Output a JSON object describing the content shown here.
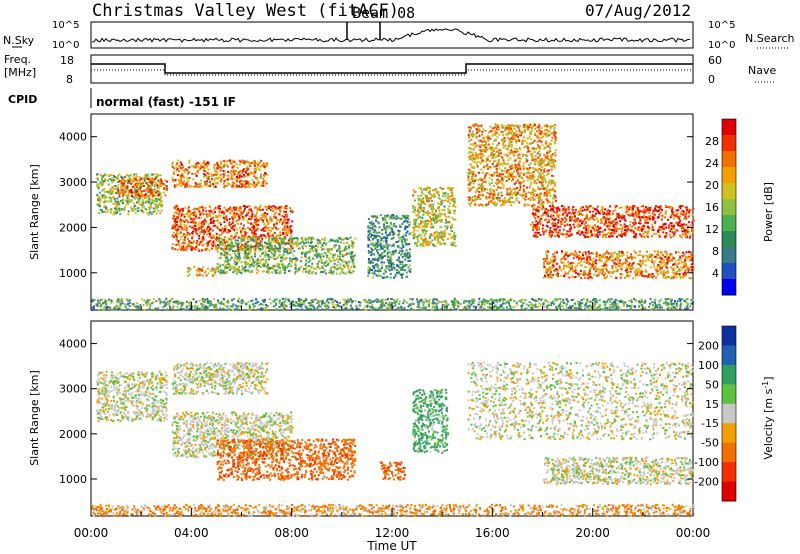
{
  "header": {
    "title": "Christmas Valley West (fitACF)",
    "beam": "Beam 08",
    "date": "07/Aug/2012"
  },
  "strips": {
    "nsky_label": "N.Sky",
    "nsearch_label": "N.Search",
    "freq_label_1": "Freq.",
    "freq_label_2": "[MHz]",
    "nave_label": "Nave",
    "cpid_label": "CPID",
    "cpid_value": "normal (fast) -151 IF",
    "nsky_ticks": [
      "10^5",
      "10^0"
    ],
    "nsearch_ticks": [
      "10^5",
      "10^0"
    ],
    "freq_ticks": [
      "18",
      "8"
    ],
    "nave_ticks": [
      "60",
      "0"
    ]
  },
  "chart_data": [
    {
      "type": "heatmap",
      "panel": "power",
      "ylabel": "Slant Range [km]",
      "xlabel": "Time UT",
      "ylim": [
        180,
        4500
      ],
      "xlim": [
        0,
        24
      ],
      "y_ticks": [
        "1000",
        "2000",
        "3000",
        "4000"
      ],
      "x_ticks": [
        "00:00",
        "04:00",
        "08:00",
        "12:00",
        "16:00",
        "20:00",
        "00:00"
      ],
      "colorbar": {
        "label": "Power [dB]",
        "ticks": [
          "4",
          "8",
          "12",
          "16",
          "20",
          "24",
          "28"
        ],
        "range": [
          0,
          32
        ],
        "colors": [
          "#0000ee",
          "#2050c0",
          "#3a7a8a",
          "#2e8b57",
          "#4caf50",
          "#8fc040",
          "#d0c020",
          "#f0a000",
          "#f07000",
          "#f03000",
          "#e00000"
        ]
      },
      "echo_bands": [
        {
          "t": [
            0.2,
            2.8
          ],
          "range_km": [
            2300,
            3200
          ],
          "power_db": 16
        },
        {
          "t": [
            1.0,
            3.0
          ],
          "range_km": [
            2700,
            3100
          ],
          "power_db": 26
        },
        {
          "t": [
            3.2,
            7.0
          ],
          "range_km": [
            2900,
            3500
          ],
          "power_db": 24
        },
        {
          "t": [
            3.2,
            8.0
          ],
          "range_km": [
            1500,
            2500
          ],
          "power_db": 26
        },
        {
          "t": [
            5.0,
            10.5
          ],
          "range_km": [
            1000,
            1800
          ],
          "power_db": 14
        },
        {
          "t": [
            3.8,
            5.0
          ],
          "range_km": [
            950,
            1150
          ],
          "power_db": 22
        },
        {
          "t": [
            11.0,
            12.7
          ],
          "range_km": [
            900,
            2300
          ],
          "power_db": 10
        },
        {
          "t": [
            12.8,
            14.5
          ],
          "range_km": [
            1600,
            2900
          ],
          "power_db": 18
        },
        {
          "t": [
            15.0,
            18.5
          ],
          "range_km": [
            2500,
            4300
          ],
          "power_db": 22
        },
        {
          "t": [
            17.5,
            24.0
          ],
          "range_km": [
            1800,
            2500
          ],
          "power_db": 28
        },
        {
          "t": [
            18.0,
            24.0
          ],
          "range_km": [
            900,
            1500
          ],
          "power_db": 24
        },
        {
          "t": [
            0.0,
            24.0
          ],
          "range_km": [
            200,
            450
          ],
          "power_db": 12
        }
      ]
    },
    {
      "type": "heatmap",
      "panel": "velocity",
      "ylabel": "Slant Range [km]",
      "xlabel": "Time UT",
      "ylim": [
        180,
        4500
      ],
      "xlim": [
        0,
        24
      ],
      "y_ticks": [
        "1000",
        "2000",
        "3000",
        "4000"
      ],
      "x_ticks": [
        "00:00",
        "04:00",
        "08:00",
        "12:00",
        "16:00",
        "20:00",
        "00:00"
      ],
      "colorbar": {
        "label": "Velocity [m s^-1]",
        "ticks": [
          "200",
          "100",
          "50",
          "15",
          "-15",
          "-50",
          "-100",
          "-200"
        ],
        "colors": [
          "#1030a0",
          "#2060b0",
          "#30a060",
          "#60c040",
          "#c8c8c8",
          "#f0a000",
          "#f07000",
          "#f03000",
          "#e00000"
        ]
      },
      "echo_bands": [
        {
          "t": [
            0.2,
            3.0
          ],
          "range_km": [
            2300,
            3400
          ],
          "velocity": 0
        },
        {
          "t": [
            3.2,
            7.0
          ],
          "range_km": [
            2900,
            3600
          ],
          "velocity": 0
        },
        {
          "t": [
            3.2,
            8.0
          ],
          "range_km": [
            1500,
            2500
          ],
          "velocity": 0
        },
        {
          "t": [
            5.0,
            10.5
          ],
          "range_km": [
            1000,
            1900
          ],
          "velocity": -60
        },
        {
          "t": [
            12.8,
            14.2
          ],
          "range_km": [
            1600,
            3000
          ],
          "velocity": 40
        },
        {
          "t": [
            11.5,
            12.5
          ],
          "range_km": [
            1000,
            1400
          ],
          "velocity": -70
        },
        {
          "t": [
            15.0,
            24.0
          ],
          "range_km": [
            1900,
            3600
          ],
          "velocity": 0
        },
        {
          "t": [
            18.0,
            24.0
          ],
          "range_km": [
            900,
            1500
          ],
          "velocity": 0
        },
        {
          "t": [
            0.0,
            24.0
          ],
          "range_km": [
            200,
            450
          ],
          "velocity": -30
        }
      ]
    }
  ]
}
